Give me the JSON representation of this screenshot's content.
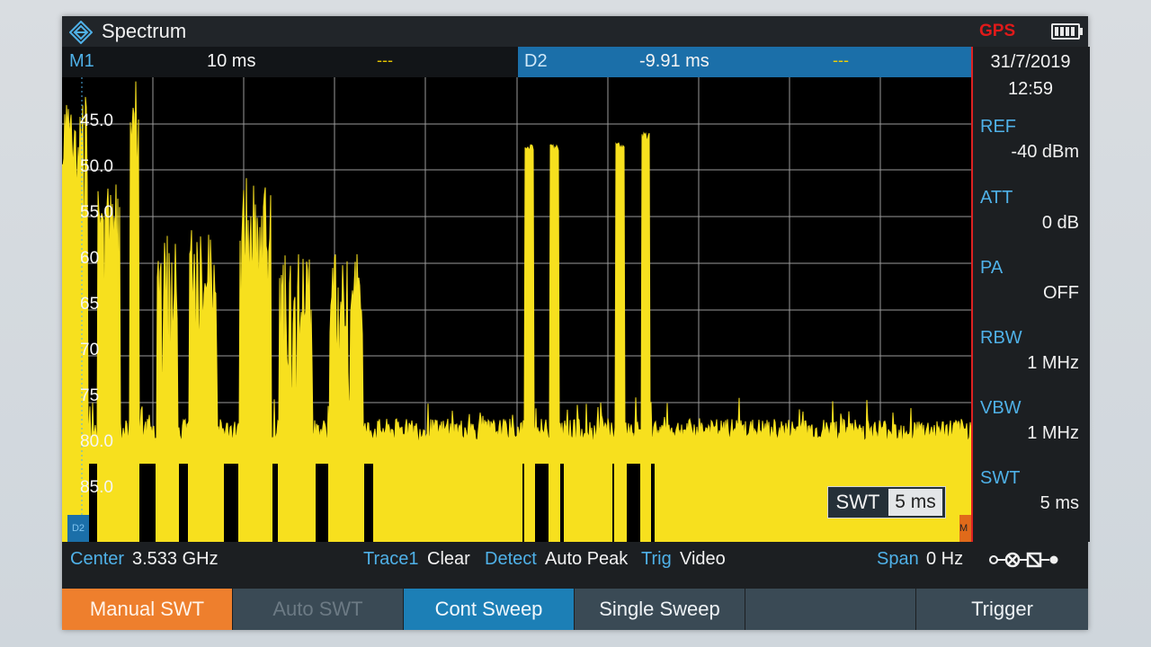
{
  "title_bar": {
    "app_title": "Spectrum",
    "logo_icon": "rs-diamond-icon",
    "gps_label": "GPS",
    "battery_icon": "battery-icon"
  },
  "marker_bar": {
    "m1": {
      "name": "M1",
      "value": "10 ms",
      "level": "---"
    },
    "d2": {
      "name": "D2",
      "value": "-9.91 ms",
      "level": "---"
    }
  },
  "right_panel": {
    "date": "31/7/2019",
    "time": "12:59",
    "params": [
      {
        "label": "REF",
        "value": "-40 dBm"
      },
      {
        "label": "ATT",
        "value": "0 dB"
      },
      {
        "label": "PA",
        "value": "OFF"
      },
      {
        "label": "RBW",
        "value": "1 MHz"
      },
      {
        "label": "VBW",
        "value": "1 MHz"
      },
      {
        "label": "SWT",
        "value": "5 ms"
      }
    ]
  },
  "plot": {
    "y_labels": [
      "45.0",
      "50.0",
      "55.0",
      "60",
      "65",
      "70",
      "75",
      "80.0",
      "85.0"
    ],
    "swt_box": {
      "label": "SWT",
      "value": "5 ms"
    },
    "d2_flag": "D2",
    "m_flag": "M",
    "colors": {
      "trace": "#f7e01e",
      "grid": "#9a9a9a",
      "background": "#000000"
    }
  },
  "status_bar": {
    "center_label": "Center",
    "center_value": "3.533 GHz",
    "trace_label": "Trace1",
    "trace_value": "Clear",
    "detect_label": "Detect",
    "detect_value": "Auto Peak",
    "trig_label": "Trig",
    "trig_value": "Video",
    "span_label": "Span",
    "span_value": "0 Hz",
    "sweep_icon": "sweep-mode-icon"
  },
  "softkeys": [
    {
      "label": "Manual SWT",
      "state": "active"
    },
    {
      "label": "Auto SWT",
      "state": "disabled"
    },
    {
      "label": "Cont Sweep",
      "state": "selected"
    },
    {
      "label": "Single Sweep",
      "state": "normal"
    },
    {
      "label": "",
      "state": "normal"
    },
    {
      "label": "Trigger",
      "state": "normal"
    }
  ]
}
